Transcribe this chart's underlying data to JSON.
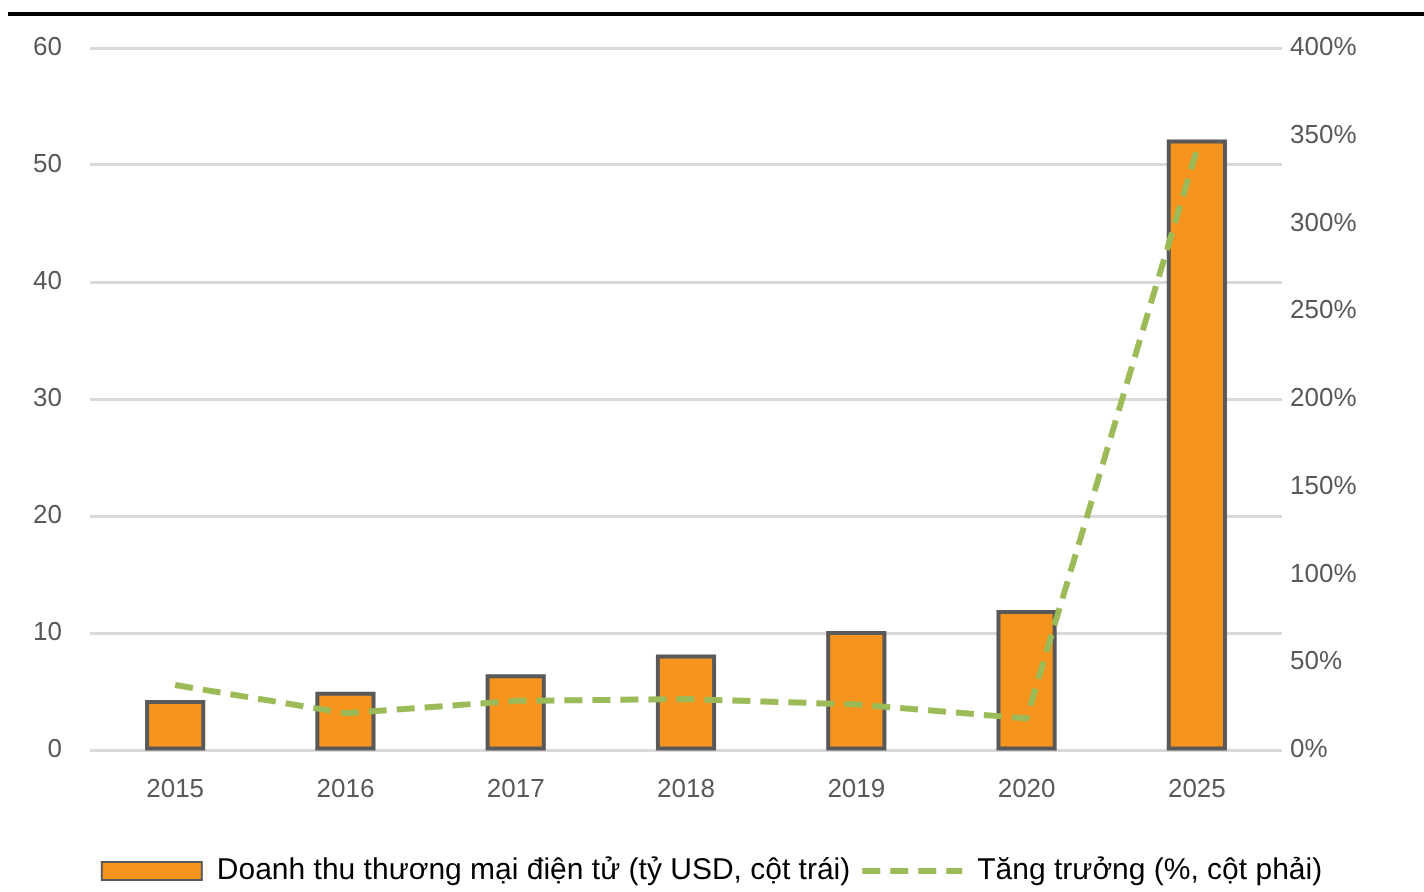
{
  "chart_data": {
    "type": "bar",
    "categories": [
      "2015",
      "2016",
      "2017",
      "2018",
      "2019",
      "2020",
      "2025"
    ],
    "series": [
      {
        "name": "Doanh thu thương mại điện tử (tỷ USD, cột trái)",
        "color": "#f7941d",
        "values": [
          4.1,
          4.8,
          6.3,
          8.0,
          10.0,
          11.8,
          52.0
        ]
      },
      {
        "name": "Tăng trưởng (%, cột phải)",
        "type": "line",
        "axis": "y2",
        "color": "#9bbb59",
        "line_style": "dashed",
        "values": [
          37,
          21,
          28,
          29,
          26,
          18,
          342
        ]
      }
    ],
    "ylim": [
      0,
      60
    ],
    "yticks": [
      0,
      10,
      20,
      30,
      40,
      50,
      60
    ],
    "y2lim": [
      0,
      400
    ],
    "y2ticks": [
      {
        "value": 0,
        "label": "0%"
      },
      {
        "value": 50,
        "label": "50%"
      },
      {
        "value": 100,
        "label": "100%"
      },
      {
        "value": 150,
        "label": "150%"
      },
      {
        "value": 200,
        "label": "200%"
      },
      {
        "value": 250,
        "label": "250%"
      },
      {
        "value": 300,
        "label": "300%"
      },
      {
        "value": 350,
        "label": "350%"
      },
      {
        "value": 400,
        "label": "400%"
      }
    ],
    "grid": "y",
    "legend": "bottom"
  }
}
